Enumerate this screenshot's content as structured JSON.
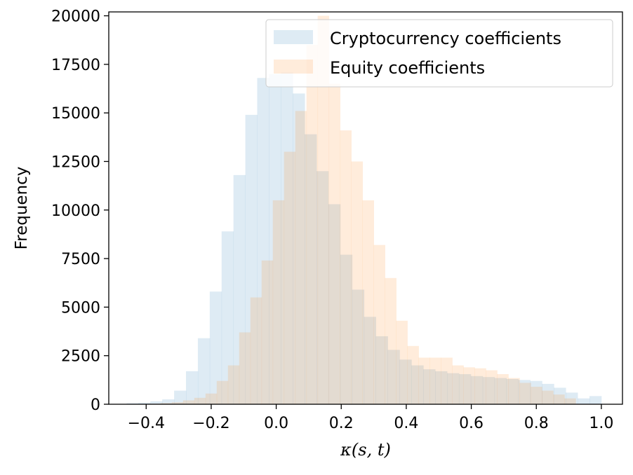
{
  "chart_data": {
    "type": "bar",
    "title": "",
    "xlabel": "κ(s, t)",
    "ylabel": "Frequency",
    "xlim": [
      -0.515,
      1.065
    ],
    "ylim": [
      0,
      20200
    ],
    "xticks": [
      -0.4,
      -0.2,
      0.0,
      0.2,
      0.4,
      0.6,
      0.8,
      1.0
    ],
    "xtick_labels": [
      "−0.4",
      "−0.2",
      "0.0",
      "0.2",
      "0.4",
      "0.6",
      "0.8",
      "1.0"
    ],
    "yticks": [
      0,
      2500,
      5000,
      7500,
      10000,
      12500,
      15000,
      17500,
      20000
    ],
    "ytick_labels": [
      "0",
      "2500",
      "5000",
      "7500",
      "10000",
      "12500",
      "15000",
      "17500",
      "20000"
    ],
    "grid": false,
    "legend": {
      "placement": "top-right"
    },
    "series": [
      {
        "name": "Cryptocurrency coefficients",
        "color": "#1f77b4",
        "opacity": 0.15,
        "bin_start": -0.46,
        "bin_width": 0.0365,
        "values": [
          50,
          80,
          150,
          250,
          700,
          1700,
          3400,
          5800,
          8900,
          11800,
          14900,
          16800,
          17000,
          17100,
          16000,
          13900,
          12000,
          10300,
          7700,
          5900,
          4500,
          3500,
          2800,
          2300,
          2000,
          1800,
          1700,
          1600,
          1550,
          1450,
          1400,
          1350,
          1300,
          1250,
          1200,
          1050,
          850,
          600,
          300,
          420
        ]
      },
      {
        "name": "Equity coefficients",
        "color": "#ff7f0e",
        "opacity": 0.15,
        "bin_start": -0.39,
        "bin_width": 0.0345,
        "values": [
          30,
          60,
          100,
          200,
          330,
          550,
          1200,
          2000,
          3700,
          5500,
          7400,
          10500,
          13000,
          15100,
          18500,
          20000,
          16500,
          14100,
          12500,
          10500,
          8200,
          6500,
          4300,
          3000,
          2400,
          2400,
          2400,
          2000,
          1900,
          1850,
          1750,
          1550,
          1350,
          1100,
          900,
          700,
          500,
          300
        ]
      }
    ]
  }
}
